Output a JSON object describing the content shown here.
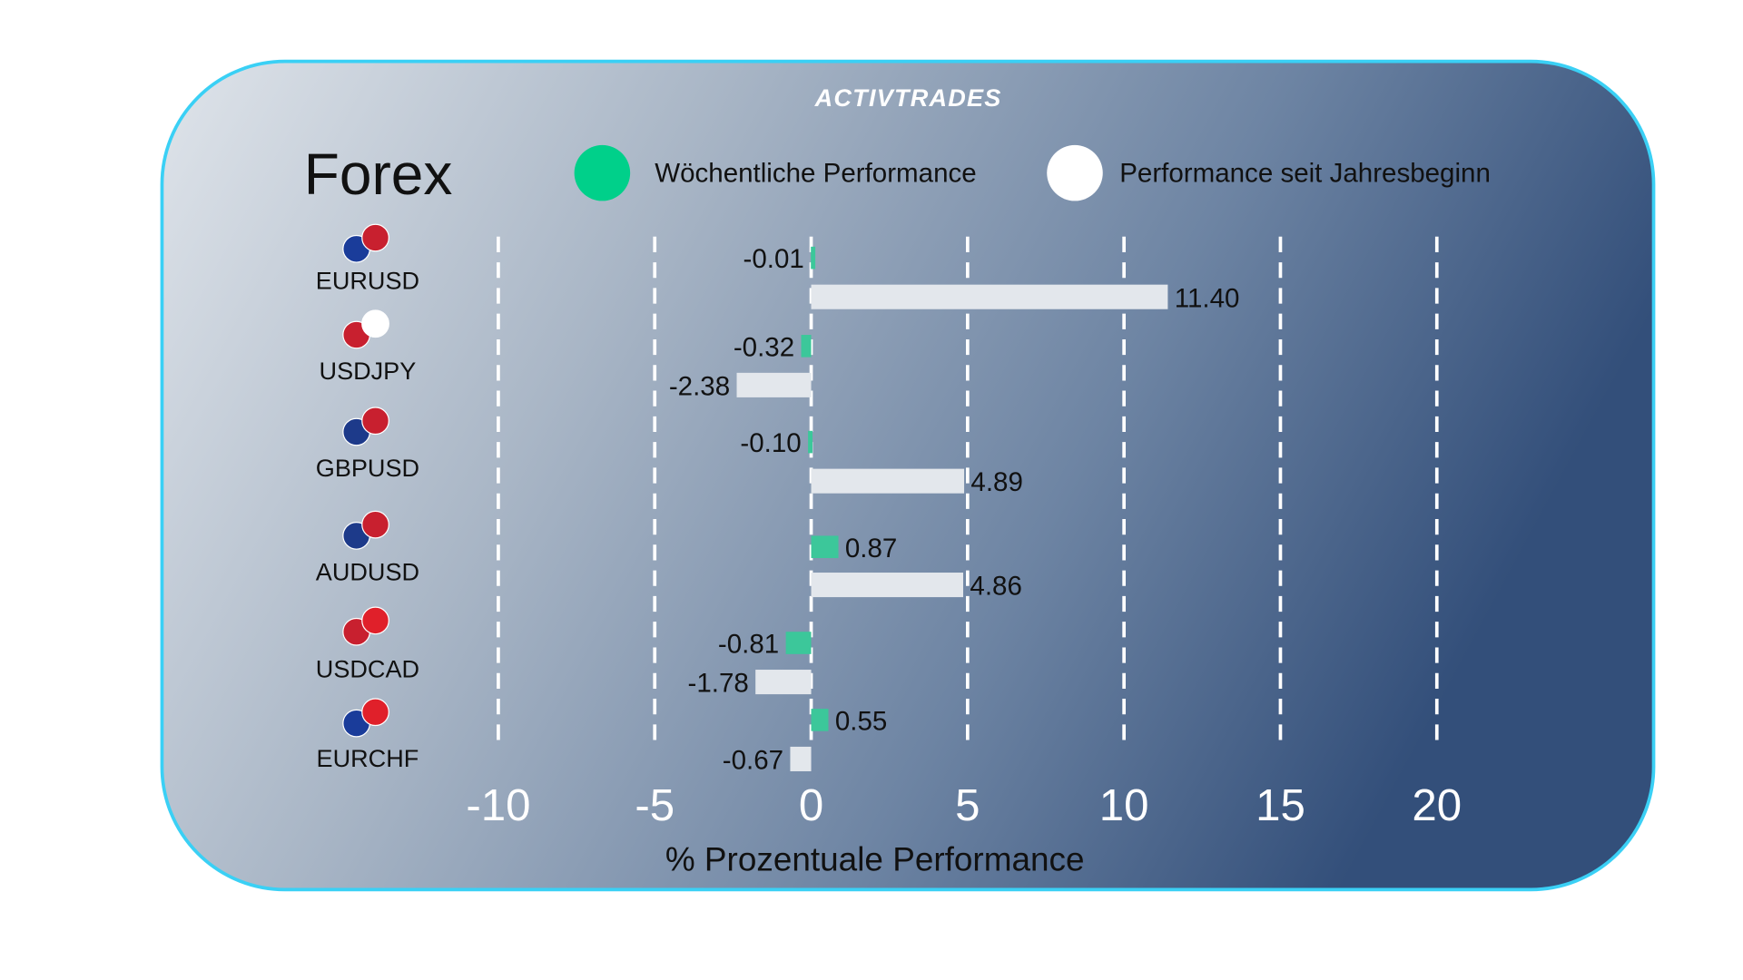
{
  "brand": "ACTIVTRADES",
  "chart_data": {
    "type": "bar",
    "orientation": "horizontal",
    "title": "Forex",
    "xlabel": "% Prozentuale Performance",
    "xlim": [
      -10,
      20
    ],
    "xticks": [
      -10,
      -5,
      0,
      5,
      10,
      15,
      20
    ],
    "grid": true,
    "legend_placement": "top",
    "categories": [
      "EURUSD",
      "USDJPY",
      "GBPUSD",
      "AUDUSD",
      "USDCAD",
      "EURCHF"
    ],
    "flags": [
      [
        "EU",
        "US"
      ],
      [
        "US",
        "JP"
      ],
      [
        "GB",
        "US"
      ],
      [
        "AU",
        "US"
      ],
      [
        "US",
        "CA"
      ],
      [
        "EU",
        "CH"
      ]
    ],
    "series": [
      {
        "name": "Wöchentliche Performance",
        "color": "#00d08a",
        "bar_color": "#3cc79a",
        "values": [
          -0.01,
          -0.32,
          -0.1,
          0.87,
          -0.81,
          0.55
        ],
        "labels": [
          "-0.01",
          "-0.32",
          "-0.10",
          "0.87",
          "-0.81",
          "0.55"
        ]
      },
      {
        "name": "Performance seit Jahresbeginn",
        "color": "#ffffff",
        "bar_color": "#e3e7ec",
        "values": [
          11.4,
          -2.38,
          4.89,
          4.86,
          -1.78,
          -0.67
        ],
        "labels": [
          "11.40",
          "-2.38",
          "4.89",
          "4.86",
          "-1.78",
          "-0.67"
        ]
      }
    ]
  }
}
